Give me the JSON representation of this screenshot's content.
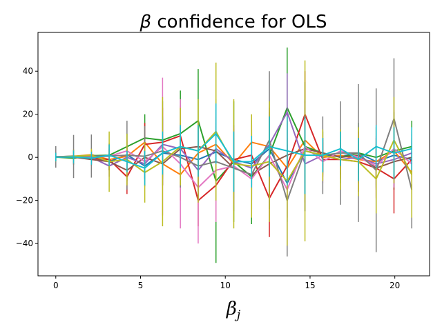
{
  "chart_data": {
    "type": "line",
    "title": {
      "greek": "β",
      "text": " confidence for OLS"
    },
    "xlabel": {
      "main": "β",
      "sub": "j"
    },
    "ylabel": "",
    "xlim": [
      -1.05,
      22.05
    ],
    "ylim": [
      -55,
      58
    ],
    "xticks": [
      0,
      5,
      10,
      15,
      20
    ],
    "yticks": [
      -40,
      -20,
      0,
      20,
      40
    ],
    "grid": false,
    "legend": "none",
    "x": [
      0,
      1.05,
      2.1,
      3.15,
      4.2,
      5.25,
      6.3,
      7.35,
      8.4,
      9.45,
      10.5,
      11.55,
      12.6,
      13.65,
      14.7,
      15.75,
      16.8,
      17.85,
      18.9,
      19.95,
      21.0
    ],
    "colors": [
      "#1f77b4",
      "#ff7f0e",
      "#2ca02c",
      "#d62728",
      "#9467bd",
      "#8c564b",
      "#e377c2",
      "#7f7f7f",
      "#bcbd22",
      "#17becf"
    ],
    "series": [
      {
        "color": "#1f77b4",
        "values": [
          0.2,
          0.6,
          0.1,
          -2,
          1.2,
          -4,
          2,
          1,
          -1,
          2.5,
          -1,
          -3,
          4,
          -12,
          3,
          1,
          0.5,
          2,
          -2,
          1,
          -1
        ],
        "err": [
          2,
          3,
          3,
          4,
          4,
          6,
          8,
          9,
          8,
          12,
          10,
          11,
          15,
          18,
          20,
          8,
          5,
          6,
          6,
          10,
          8
        ]
      },
      {
        "color": "#ff7f0e",
        "values": [
          0.3,
          0.5,
          1.2,
          -1,
          0.5,
          7,
          -3,
          -8,
          2,
          6,
          -3,
          7,
          5,
          -5,
          8,
          0,
          1,
          -1,
          -2,
          3,
          -7
        ],
        "err": [
          2,
          3,
          3,
          5,
          4,
          9,
          10,
          12,
          14,
          16,
          12,
          10,
          14,
          14,
          18,
          7,
          6,
          7,
          8,
          10,
          10
        ]
      },
      {
        "color": "#2ca02c",
        "values": [
          0.1,
          -0.4,
          0.8,
          1,
          5,
          9,
          8,
          11,
          17,
          -11,
          -2,
          -9,
          1,
          23,
          5,
          2,
          0,
          2,
          0,
          3,
          5
        ],
        "err": [
          2,
          3,
          3,
          5,
          6,
          11,
          18,
          20,
          24,
          38,
          28,
          22,
          20,
          28,
          30,
          10,
          12,
          14,
          14,
          18,
          12
        ]
      },
      {
        "color": "#d62728",
        "values": [
          0.2,
          0.4,
          -0.5,
          -1,
          -9,
          6,
          7,
          10,
          -20,
          -13,
          -1,
          1,
          -19,
          -4,
          20,
          -1,
          -1,
          -2,
          -5,
          -10,
          -1
        ],
        "err": [
          2,
          3,
          3,
          5,
          8,
          10,
          16,
          14,
          12,
          16,
          14,
          14,
          18,
          24,
          20,
          8,
          9,
          14,
          14,
          16,
          10
        ]
      },
      {
        "color": "#9467bd",
        "values": [
          0.3,
          0.2,
          0,
          -4,
          0,
          -3,
          6,
          4,
          -6,
          4,
          -2,
          -5,
          6,
          21,
          -3,
          1,
          -1,
          0,
          -3,
          -1,
          2
        ],
        "err": [
          2,
          3,
          3,
          5,
          5,
          7,
          12,
          12,
          14,
          18,
          14,
          12,
          16,
          18,
          22,
          8,
          8,
          10,
          10,
          12,
          9
        ]
      },
      {
        "color": "#8c564b",
        "values": [
          0.2,
          0.1,
          -1,
          -2,
          -6,
          0,
          -3,
          4,
          5,
          3,
          -5,
          -8,
          -3,
          1,
          4,
          2,
          0,
          1,
          -5,
          -2,
          0
        ],
        "err": [
          2,
          3,
          3,
          4,
          5,
          8,
          10,
          10,
          12,
          16,
          14,
          12,
          14,
          16,
          16,
          6,
          8,
          8,
          10,
          12,
          8
        ]
      },
      {
        "color": "#e377c2",
        "values": [
          0.1,
          0.3,
          0.2,
          0.5,
          3,
          -2,
          5,
          -3,
          -14,
          -6,
          -4,
          -10,
          1,
          -15,
          5,
          -2,
          3,
          0,
          -4,
          4,
          -3
        ],
        "err": [
          2,
          3,
          3,
          5,
          5,
          8,
          32,
          30,
          26,
          24,
          18,
          16,
          22,
          26,
          20,
          10,
          10,
          12,
          14,
          18,
          10
        ]
      },
      {
        "color": "#7f7f7f",
        "values": [
          0.2,
          0.4,
          0.6,
          0.6,
          1,
          0.5,
          3,
          0,
          -4,
          -2,
          -5,
          -8,
          8,
          -20,
          3,
          1,
          2,
          2,
          -6,
          18,
          -15
        ],
        "err": [
          5,
          10,
          10,
          6,
          16,
          14,
          16,
          14,
          16,
          18,
          20,
          16,
          32,
          26,
          24,
          18,
          24,
          32,
          38,
          28,
          18
        ]
      },
      {
        "color": "#bcbd22",
        "values": [
          0,
          0.5,
          1,
          -2,
          -1,
          -7,
          -2,
          5,
          3,
          12,
          -3,
          -4,
          -2,
          -11,
          3,
          1,
          -1,
          -2,
          -10,
          8,
          -8
        ],
        "err": [
          2,
          3,
          3,
          14,
          12,
          14,
          30,
          18,
          24,
          32,
          30,
          24,
          28,
          30,
          42,
          12,
          14,
          16,
          16,
          20,
          20
        ]
      },
      {
        "color": "#17becf",
        "values": [
          0.1,
          0.2,
          -0.4,
          1,
          -2,
          -5,
          2,
          5,
          3,
          11,
          -2,
          -2,
          5,
          3,
          1,
          1,
          4,
          -1,
          5,
          2,
          4
        ],
        "err": [
          2,
          3,
          3,
          5,
          5,
          8,
          10,
          10,
          12,
          14,
          14,
          12,
          14,
          16,
          18,
          8,
          8,
          10,
          10,
          12,
          10
        ]
      }
    ]
  }
}
